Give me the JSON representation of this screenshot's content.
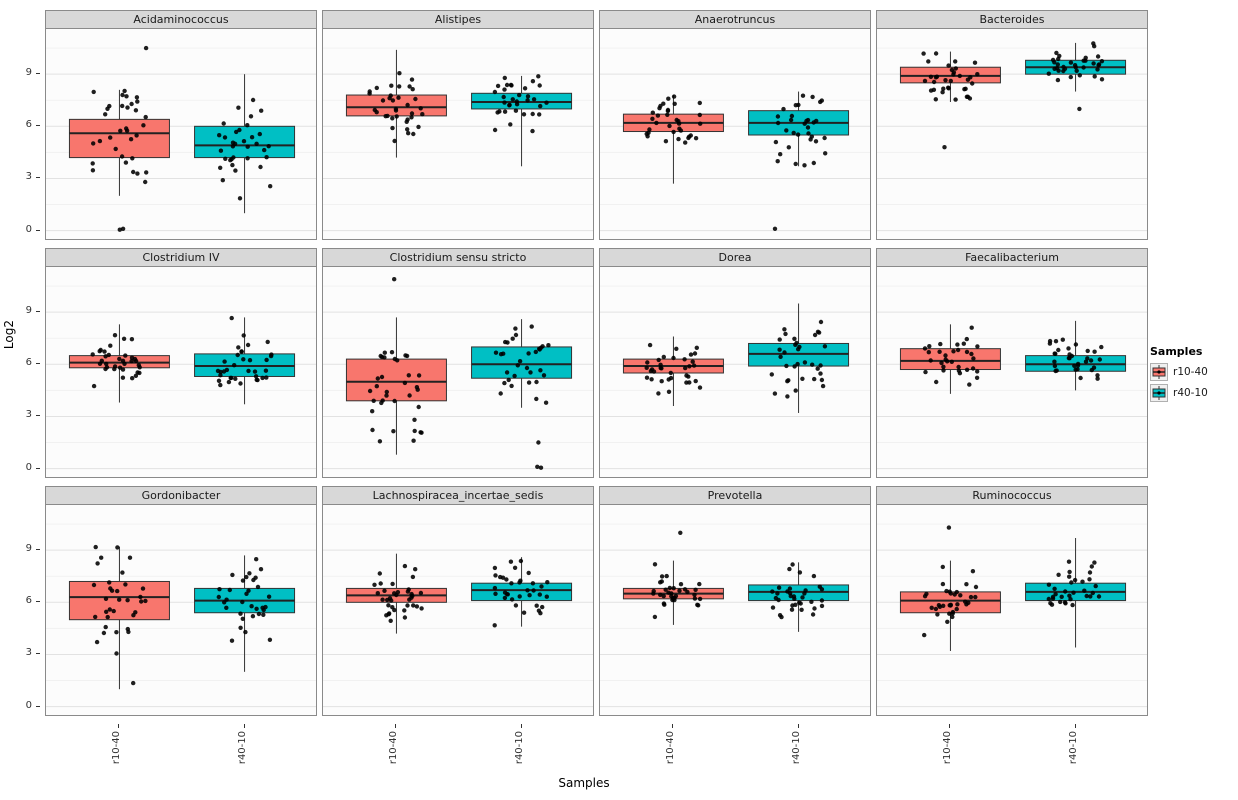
{
  "figure": {
    "ylabel": "Log2",
    "xlabel": "Samples",
    "y_ticks": [
      0,
      3,
      6,
      9
    ],
    "legend": {
      "title": "Samples",
      "items": [
        {
          "label": "r10-40",
          "color": "#F8766D"
        },
        {
          "label": "r40-10",
          "color": "#00BFC4"
        }
      ]
    }
  },
  "chart_data": {
    "type": "boxplot",
    "title": "",
    "xlabel": "Samples",
    "ylabel": "Log2",
    "x_categories": [
      "r10-40",
      "r40-10"
    ],
    "group_colors": [
      "#F8766D",
      "#00BFC4"
    ],
    "ylim": [
      -0.6,
      11.6
    ],
    "y_ticks": [
      0,
      3,
      6,
      9
    ],
    "y_minor_ticks": [
      1.5,
      4.5,
      7.5,
      10.5
    ],
    "points_overlaid": true,
    "facets": [
      {
        "title": "Acidaminococcus",
        "groups": [
          {
            "name": "r10-40",
            "min": 2.0,
            "q1": 4.2,
            "median": 5.6,
            "q3": 6.4,
            "max": 8.1,
            "outliers": [
              10.5,
              0.05,
              0.1
            ],
            "n_points": 33
          },
          {
            "name": "r40-10",
            "min": 1.0,
            "q1": 4.2,
            "median": 4.9,
            "q3": 6.0,
            "max": 9.0,
            "outliers": [],
            "n_points": 34
          }
        ]
      },
      {
        "title": "Alistipes",
        "groups": [
          {
            "name": "r10-40",
            "min": 4.2,
            "q1": 6.6,
            "median": 7.1,
            "q3": 7.8,
            "max": 10.4,
            "outliers": [],
            "n_points": 36
          },
          {
            "name": "r40-10",
            "min": 3.7,
            "q1": 7.0,
            "median": 7.4,
            "q3": 7.9,
            "max": 8.9,
            "outliers": [],
            "n_points": 34
          }
        ]
      },
      {
        "title": "Anaerotruncus",
        "groups": [
          {
            "name": "r10-40",
            "min": 2.7,
            "q1": 5.7,
            "median": 6.2,
            "q3": 6.7,
            "max": 7.8,
            "outliers": [],
            "n_points": 34
          },
          {
            "name": "r40-10",
            "min": 3.7,
            "q1": 5.5,
            "median": 6.2,
            "q3": 6.9,
            "max": 8.0,
            "outliers": [
              0.1
            ],
            "n_points": 33
          }
        ]
      },
      {
        "title": "Bacteroides",
        "groups": [
          {
            "name": "r10-40",
            "min": 7.4,
            "q1": 8.5,
            "median": 8.9,
            "q3": 9.4,
            "max": 10.3,
            "outliers": [
              4.8
            ],
            "n_points": 35
          },
          {
            "name": "r40-10",
            "min": 8.0,
            "q1": 9.0,
            "median": 9.4,
            "q3": 9.8,
            "max": 10.8,
            "outliers": [
              7.0
            ],
            "n_points": 34
          }
        ]
      },
      {
        "title": "Clostridium IV",
        "groups": [
          {
            "name": "r10-40",
            "min": 3.8,
            "q1": 5.8,
            "median": 6.1,
            "q3": 6.5,
            "max": 8.3,
            "outliers": [],
            "n_points": 35
          },
          {
            "name": "r40-10",
            "min": 3.7,
            "q1": 5.3,
            "median": 5.9,
            "q3": 6.6,
            "max": 8.7,
            "outliers": [],
            "n_points": 35
          }
        ]
      },
      {
        "title": "Clostridium sensu stricto",
        "groups": [
          {
            "name": "r10-40",
            "min": 0.8,
            "q1": 3.9,
            "median": 5.0,
            "q3": 6.3,
            "max": 8.7,
            "outliers": [
              10.9
            ],
            "n_points": 35
          },
          {
            "name": "r40-10",
            "min": 3.5,
            "q1": 5.2,
            "median": 6.0,
            "q3": 7.0,
            "max": 8.6,
            "outliers": [
              0.05,
              0.1,
              1.5
            ],
            "n_points": 32
          }
        ]
      },
      {
        "title": "Dorea",
        "groups": [
          {
            "name": "r10-40",
            "min": 3.6,
            "q1": 5.5,
            "median": 5.9,
            "q3": 6.3,
            "max": 7.6,
            "outliers": [],
            "n_points": 35
          },
          {
            "name": "r40-10",
            "min": 3.2,
            "q1": 5.9,
            "median": 6.6,
            "q3": 7.2,
            "max": 9.5,
            "outliers": [],
            "n_points": 34
          }
        ]
      },
      {
        "title": "Faecalibacterium",
        "groups": [
          {
            "name": "r10-40",
            "min": 4.3,
            "q1": 5.7,
            "median": 6.2,
            "q3": 6.9,
            "max": 8.3,
            "outliers": [],
            "n_points": 33
          },
          {
            "name": "r40-10",
            "min": 4.5,
            "q1": 5.6,
            "median": 6.0,
            "q3": 6.5,
            "max": 8.5,
            "outliers": [],
            "n_points": 34
          }
        ]
      },
      {
        "title": "Gordonibacter",
        "groups": [
          {
            "name": "r10-40",
            "min": 1.0,
            "q1": 5.0,
            "median": 6.3,
            "q3": 7.2,
            "max": 9.2,
            "outliers": [],
            "n_points": 34
          },
          {
            "name": "r40-10",
            "min": 2.0,
            "q1": 5.4,
            "median": 6.1,
            "q3": 6.8,
            "max": 8.7,
            "outliers": [],
            "n_points": 33
          }
        ]
      },
      {
        "title": "Lachnospiracea_incertae_sedis",
        "groups": [
          {
            "name": "r10-40",
            "min": 4.2,
            "q1": 6.0,
            "median": 6.4,
            "q3": 6.8,
            "max": 8.8,
            "outliers": [],
            "n_points": 36
          },
          {
            "name": "r40-10",
            "min": 4.6,
            "q1": 6.1,
            "median": 6.7,
            "q3": 7.1,
            "max": 8.6,
            "outliers": [],
            "n_points": 35
          }
        ]
      },
      {
        "title": "Prevotella",
        "groups": [
          {
            "name": "r10-40",
            "min": 4.7,
            "q1": 6.2,
            "median": 6.5,
            "q3": 6.8,
            "max": 8.4,
            "outliers": [
              10.0
            ],
            "n_points": 34
          },
          {
            "name": "r40-10",
            "min": 4.3,
            "q1": 6.1,
            "median": 6.6,
            "q3": 7.0,
            "max": 8.3,
            "outliers": [],
            "n_points": 34
          }
        ]
      },
      {
        "title": "Ruminococcus",
        "groups": [
          {
            "name": "r10-40",
            "min": 3.2,
            "q1": 5.4,
            "median": 6.1,
            "q3": 6.6,
            "max": 8.4,
            "outliers": [
              10.3
            ],
            "n_points": 35
          },
          {
            "name": "r40-10",
            "min": 3.4,
            "q1": 6.1,
            "median": 6.6,
            "q3": 7.1,
            "max": 9.7,
            "outliers": [],
            "n_points": 34
          }
        ]
      }
    ]
  }
}
